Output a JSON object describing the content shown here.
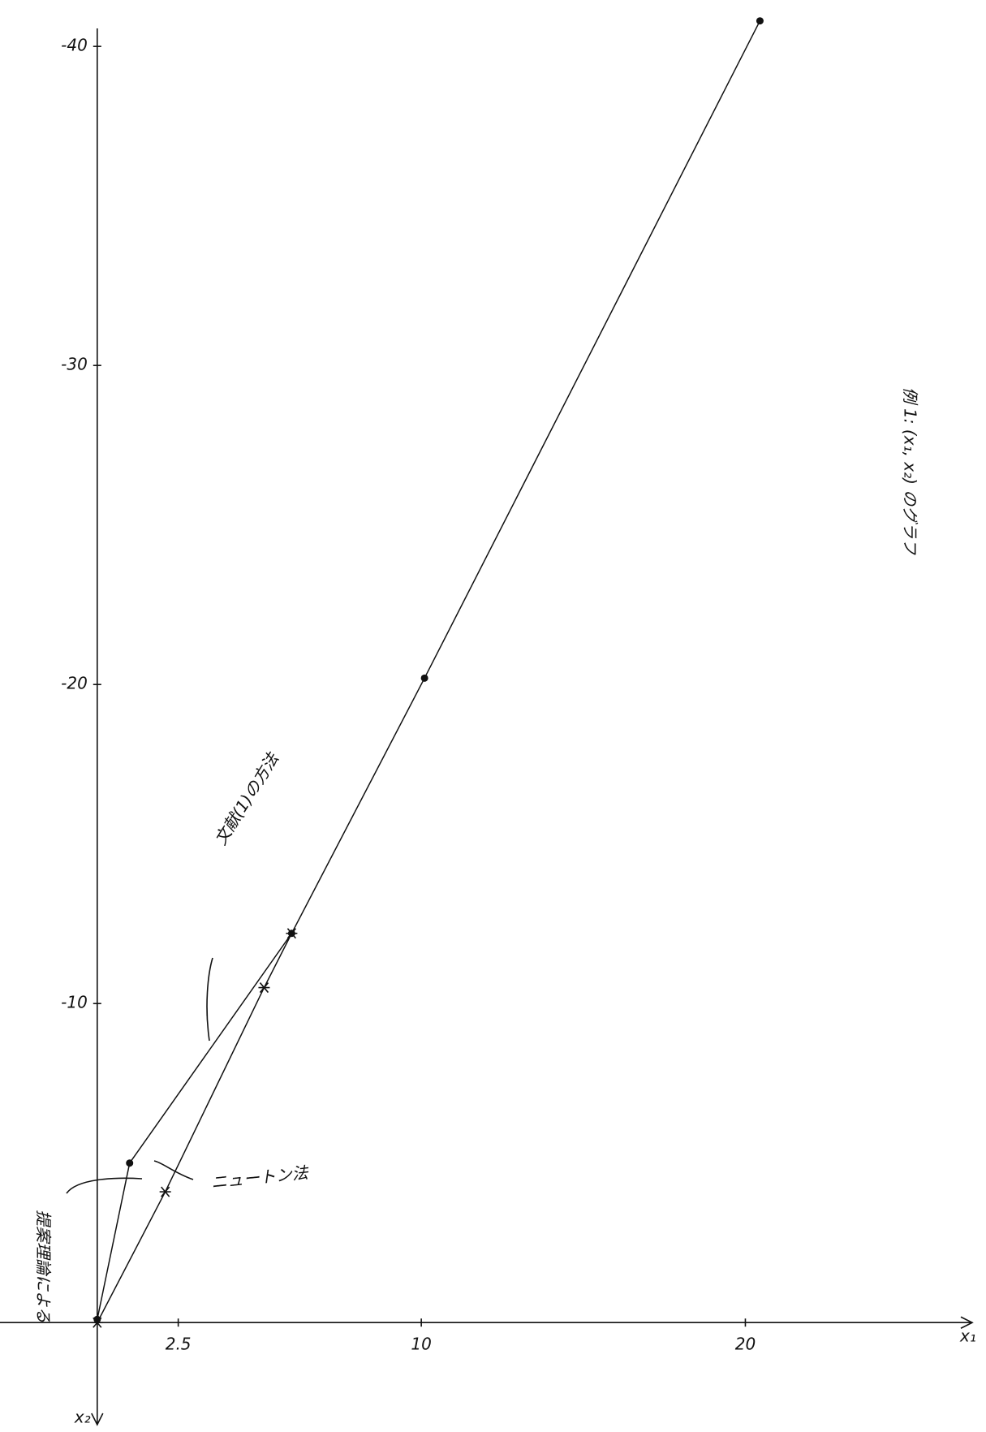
{
  "chart_data": {
    "type": "line",
    "title": "例 1: (x₁, x₂) のグラフ",
    "x_label": "x₁",
    "y_label": "x₂",
    "xlim": [
      -3,
      27
    ],
    "ylim": [
      3.2,
      -41.2
    ],
    "xticks": [
      2.5,
      10,
      20
    ],
    "yticks": [
      -40,
      -30,
      -20,
      -10
    ],
    "series": [
      {
        "name": "文献(1)の方法",
        "color": "#111111",
        "marker": "dot",
        "x": [
          0,
          1.0,
          6.0,
          10.1,
          20.45
        ],
        "values": [
          -0.1,
          -5.0,
          -12.2,
          -20.2,
          -40.8
        ]
      },
      {
        "name": "ニュートン法",
        "color": "#111111",
        "marker": "star",
        "x": [
          0,
          2.1,
          5.15,
          6.0
        ],
        "values": [
          0,
          -4.1,
          -10.5,
          -12.2
        ]
      }
    ],
    "annotations": [
      {
        "text": "提案理論による"
      }
    ]
  }
}
